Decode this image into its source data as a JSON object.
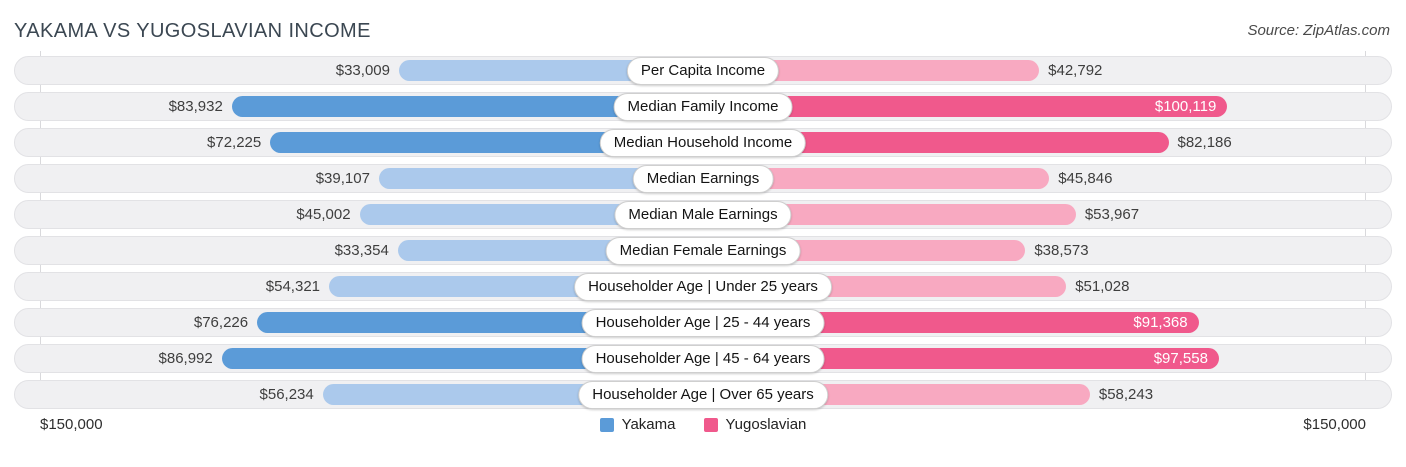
{
  "title": "YAKAMA VS YUGOSLAVIAN INCOME",
  "source": "Source: ZipAtlas.com",
  "axis": {
    "left_max": "$150,000",
    "right_max": "$150,000"
  },
  "legend": [
    {
      "label": "Yakama",
      "color": "#5b9bd8"
    },
    {
      "label": "Yugoslavian",
      "color": "#f0598c"
    }
  ],
  "colors": {
    "yakama_dark": "#5b9bd8",
    "yakama_light": "#abc9ec",
    "yugoslavian_dark": "#f0598c",
    "yugoslavian_light": "#f8a9c1",
    "track": "#f0f0f2",
    "track_border": "#e2e2e5",
    "inside_label_text": "#ffffff"
  },
  "chart_data": {
    "type": "bar",
    "variant": "diverging-horizontal",
    "title": "Yakama vs Yugoslavian Income",
    "categories": [
      "Per Capita Income",
      "Median Family Income",
      "Median Household Income",
      "Median Earnings",
      "Median Male Earnings",
      "Median Female Earnings",
      "Householder Age | Under 25 years",
      "Householder Age | 25 - 44 years",
      "Householder Age | 45 - 64 years",
      "Householder Age | Over 65 years"
    ],
    "series": [
      {
        "name": "Yakama",
        "side": "left",
        "values": [
          33009,
          83932,
          72225,
          39107,
          45002,
          33354,
          54321,
          76226,
          86992,
          56234
        ],
        "display": [
          "$33,009",
          "$83,932",
          "$72,225",
          "$39,107",
          "$45,002",
          "$33,354",
          "$54,321",
          "$76,226",
          "$86,992",
          "$56,234"
        ]
      },
      {
        "name": "Yugoslavian",
        "side": "right",
        "values": [
          42792,
          100119,
          82186,
          45846,
          53967,
          38573,
          51028,
          91368,
          97558,
          58243
        ],
        "display": [
          "$42,792",
          "$100,119",
          "$82,186",
          "$45,846",
          "$53,967",
          "$38,573",
          "$51,028",
          "$91,368",
          "$97,558",
          "$58,243"
        ]
      }
    ],
    "xlim": [
      0,
      150000
    ],
    "axis_tick_labels": [
      "$150,000",
      "$150,000"
    ],
    "legend_position": "bottom-center",
    "grid": "edge-gridlines-only"
  }
}
